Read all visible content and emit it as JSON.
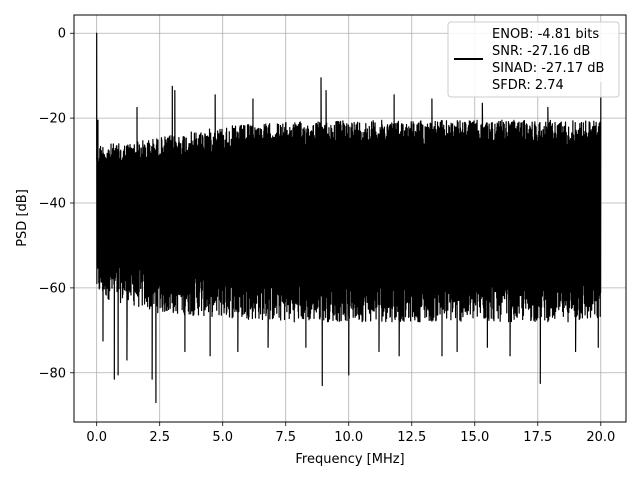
{
  "chart_data": {
    "type": "line",
    "title": "",
    "xlabel": "Frequency [MHz]",
    "ylabel": "PSD [dB]",
    "xlim": [
      -0.9,
      21.0
    ],
    "ylim": [
      -91.6,
      4.3
    ],
    "xticks": [
      0.0,
      2.5,
      5.0,
      7.5,
      10.0,
      12.5,
      15.0,
      17.5,
      20.0
    ],
    "xtick_labels": [
      "0.0",
      "2.5",
      "5.0",
      "7.5",
      "10.0",
      "12.5",
      "15.0",
      "17.5",
      "20.0"
    ],
    "yticks": [
      0,
      -20,
      -40,
      -60,
      -80
    ],
    "ytick_labels": [
      "0",
      "−20",
      "−40",
      "−60",
      "−80"
    ],
    "grid": true,
    "line_color": "#000000",
    "legend": {
      "placement": "top-right",
      "entries": [
        "ENOB: -4.81 bits",
        "SNR: -27.16 dB",
        "SINAD: -27.17 dB",
        "SFDR: 2.74"
      ]
    },
    "series": [
      {
        "name": "ENOB: -4.81 bits\nSNR: -27.16 dB\nSINAD: -27.17 dB\nSFDR: 2.74",
        "x_range": [
          0.0,
          20.0
        ],
        "upper_envelope": [
          [
            0.0,
            -26
          ],
          [
            0.5,
            -26
          ],
          [
            1.0,
            -26
          ],
          [
            2.0,
            -25
          ],
          [
            3.0,
            -24
          ],
          [
            4.0,
            -23
          ],
          [
            5.0,
            -22
          ],
          [
            6.0,
            -21.5
          ],
          [
            7.5,
            -21
          ],
          [
            10.0,
            -20.5
          ],
          [
            12.5,
            -20.5
          ],
          [
            15.0,
            -20.5
          ],
          [
            17.5,
            -20.5
          ],
          [
            20.0,
            -20.5
          ]
        ],
        "lower_envelope": [
          [
            0.0,
            -62
          ],
          [
            2.5,
            -66
          ],
          [
            5.0,
            -67
          ],
          [
            7.5,
            -68
          ],
          [
            10.0,
            -68
          ],
          [
            12.5,
            -68
          ],
          [
            15.0,
            -68
          ],
          [
            17.5,
            -68
          ],
          [
            20.0,
            -68
          ]
        ],
        "peaks": [
          {
            "x": 0.0,
            "y": 0.0
          },
          {
            "x": 0.05,
            "y": -20.5
          },
          {
            "x": 1.6,
            "y": -17.5
          },
          {
            "x": 3.0,
            "y": -12.5
          },
          {
            "x": 3.1,
            "y": -13.5
          },
          {
            "x": 4.7,
            "y": -14.5
          },
          {
            "x": 6.2,
            "y": -15.5
          },
          {
            "x": 8.9,
            "y": -10.5
          },
          {
            "x": 9.1,
            "y": -13.5
          },
          {
            "x": 11.8,
            "y": -14.5
          },
          {
            "x": 13.3,
            "y": -15.5
          },
          {
            "x": 15.3,
            "y": -16.5
          },
          {
            "x": 17.9,
            "y": -17.5
          },
          {
            "x": 20.0,
            "y": -11.5
          }
        ],
        "dips": [
          {
            "x": 0.25,
            "y": -72.5
          },
          {
            "x": 0.7,
            "y": -81.5
          },
          {
            "x": 0.85,
            "y": -80.5
          },
          {
            "x": 1.2,
            "y": -77
          },
          {
            "x": 2.2,
            "y": -81.5
          },
          {
            "x": 2.35,
            "y": -87
          },
          {
            "x": 3.5,
            "y": -75
          },
          {
            "x": 4.5,
            "y": -76
          },
          {
            "x": 5.6,
            "y": -75
          },
          {
            "x": 6.8,
            "y": -74
          },
          {
            "x": 8.3,
            "y": -74
          },
          {
            "x": 8.95,
            "y": -83
          },
          {
            "x": 10.0,
            "y": -80.5
          },
          {
            "x": 11.2,
            "y": -75
          },
          {
            "x": 12.0,
            "y": -76
          },
          {
            "x": 13.7,
            "y": -76
          },
          {
            "x": 14.3,
            "y": -75
          },
          {
            "x": 15.5,
            "y": -74
          },
          {
            "x": 16.4,
            "y": -76
          },
          {
            "x": 17.6,
            "y": -82.5
          },
          {
            "x": 19.0,
            "y": -75
          },
          {
            "x": 19.9,
            "y": -74
          }
        ]
      }
    ]
  }
}
